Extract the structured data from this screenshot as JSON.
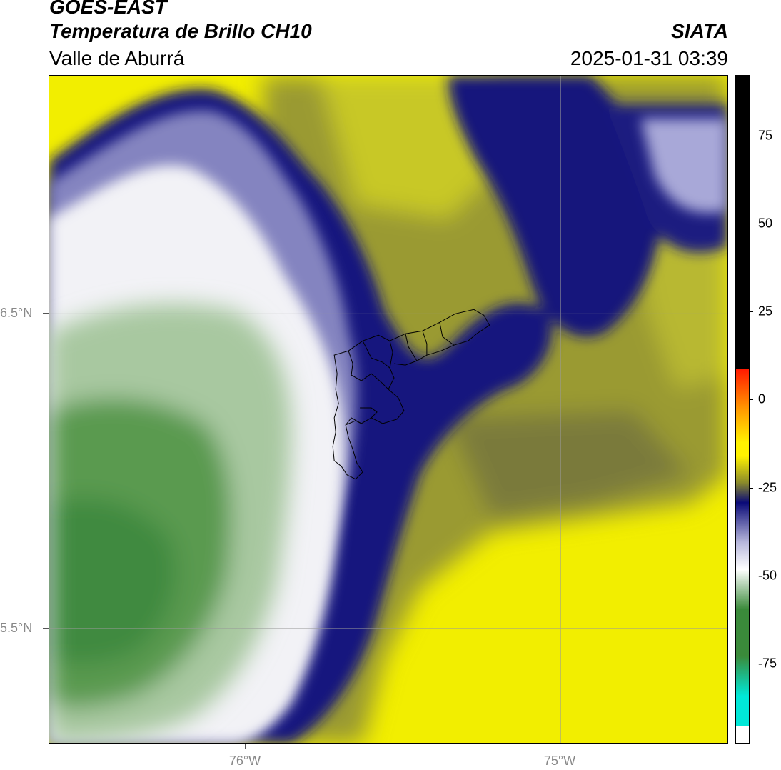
{
  "header": {
    "satellite": "GOES-EAST",
    "product": "Temperatura de Brillo CH10",
    "region": "Valle de Aburrá",
    "organization": "SIATA",
    "datetime": "2025-01-31 03:39"
  },
  "map": {
    "lat_labels": [
      "6.5°N",
      "5.5°N"
    ],
    "lon_labels": [
      "76°W",
      "75°W"
    ]
  },
  "colorbar": {
    "ticks": [
      "75",
      "50",
      "25",
      "0",
      "-25",
      "-50",
      "-75"
    ],
    "colors": {
      "black": "#000000",
      "red": "#ff1a00",
      "orange": "#ff9a00",
      "yellow": "#fff200",
      "olive": "#8a8a2a",
      "navy": "#0a0a78",
      "lavender": "#b8b8dc",
      "white": "#ffffff",
      "green": "#3a8a3a",
      "cyan": "#00e8d8"
    }
  }
}
